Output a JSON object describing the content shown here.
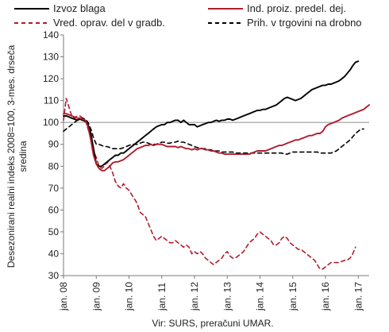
{
  "chart_data": {
    "type": "line",
    "title": "",
    "ylabel": "Desezonirani realni indeks 2008=100, 3-mes. drseča sredina",
    "ylabel_lines": [
      "Desezonirani realni indeks 2008=100, 3-mes. drseča",
      "sredina"
    ],
    "xlabel": "",
    "ylim": [
      30,
      140
    ],
    "yticks": [
      30,
      40,
      50,
      60,
      70,
      80,
      90,
      100,
      110,
      120,
      130,
      140
    ],
    "xlim": [
      "2008-01",
      "2017-03"
    ],
    "xticks": [
      "jan. 08",
      "jan. 09",
      "jan. 10",
      "jan. 11",
      "jan. 12",
      "jan. 13",
      "jan. 14",
      "jan. 15",
      "jan. 16",
      "jan. 17"
    ],
    "reference_line": 100,
    "grid": false,
    "legend": "top",
    "source": "Vir: SURS, preračuni UMAR.",
    "series": [
      {
        "name": "Izvoz blaga",
        "color": "#000000",
        "style": "solid",
        "values": [
          103,
          103,
          102.5,
          102,
          101.5,
          101,
          101.5,
          101,
          100.5,
          99,
          95,
          88,
          81,
          80,
          80,
          81,
          82,
          83,
          84,
          85,
          85,
          86,
          86,
          87,
          88,
          89,
          90,
          91,
          92,
          93,
          94,
          95,
          96,
          97,
          98,
          98.5,
          99,
          99,
          100,
          100,
          100.5,
          101,
          101,
          100,
          101,
          100,
          99,
          99,
          99,
          98,
          98.5,
          99,
          99.5,
          100,
          100,
          100.5,
          101,
          100.5,
          101,
          101,
          101.5,
          101.5,
          101,
          101.5,
          102,
          102.5,
          103,
          103.5,
          104,
          104.5,
          105,
          105.5,
          105.5,
          106,
          106,
          106.5,
          107,
          107.5,
          108,
          109,
          110,
          111,
          111.5,
          111,
          110.5,
          110,
          110.5,
          111,
          112,
          113,
          114,
          115,
          115.5,
          116,
          116.5,
          117,
          117,
          117.5,
          117.5,
          118,
          118.5,
          119,
          120,
          121,
          122.5,
          124,
          126,
          127.5,
          128
        ]
      },
      {
        "name": "Ind. proiz. predel. dej.",
        "color": "#b01c2e",
        "style": "solid",
        "values": [
          104,
          104,
          103.5,
          103,
          102.5,
          102,
          102,
          101.5,
          101,
          98,
          92,
          85,
          81,
          79,
          78,
          78,
          79,
          80,
          81.5,
          82,
          82,
          82.5,
          83,
          84,
          85,
          86,
          87,
          88,
          88.5,
          89,
          89.5,
          89.5,
          90,
          89.5,
          90,
          90,
          90,
          89.5,
          89,
          89,
          89,
          89,
          88.5,
          89,
          88.5,
          88,
          88,
          87.5,
          88,
          87.5,
          88,
          88,
          87.5,
          87.5,
          87,
          87,
          86.5,
          86,
          86,
          85.5,
          85.5,
          85.5,
          85.5,
          85.5,
          85.5,
          85.5,
          85.5,
          85.5,
          85.5,
          86,
          86.5,
          87,
          87,
          87,
          87,
          87.5,
          88,
          88.5,
          89,
          89.5,
          89.5,
          90,
          90.5,
          91,
          91.5,
          92,
          92,
          92.5,
          93,
          93.5,
          94,
          94,
          94.5,
          95,
          95,
          96,
          98,
          99,
          99.5,
          100,
          100.5,
          101,
          102,
          102.5,
          103,
          103.5,
          104,
          104.5,
          105,
          105.5,
          106,
          107,
          108
        ]
      },
      {
        "name": "Vred. oprav. del v gradb.",
        "color": "#b01c2e",
        "style": "dashed",
        "values": [
          101,
          111,
          107,
          103,
          102,
          103,
          103,
          102,
          101,
          97,
          93,
          87,
          84,
          80,
          79,
          80,
          82,
          80,
          77,
          73,
          71,
          70,
          72,
          70,
          69,
          67,
          65,
          63,
          59,
          58,
          57,
          54,
          51,
          48,
          46,
          47,
          48,
          47,
          46,
          45,
          45,
          46,
          45,
          44,
          43,
          44,
          43,
          40,
          41,
          40,
          41,
          40,
          38,
          37,
          36,
          35,
          36,
          37,
          38,
          40,
          41,
          39,
          38,
          38,
          39,
          40,
          41,
          43,
          45,
          46,
          47,
          49,
          50,
          49,
          48,
          47,
          46,
          44,
          44,
          45,
          47,
          48,
          47,
          45,
          44,
          43,
          42,
          42,
          41,
          40,
          39,
          38,
          37,
          35,
          33,
          33,
          34,
          35,
          36,
          36,
          36,
          36,
          36.5,
          37,
          37,
          38,
          40,
          43
        ]
      },
      {
        "name": "Prih. v trgovini na drobno",
        "color": "#000000",
        "style": "dashed",
        "values": [
          96,
          97,
          98,
          99,
          100,
          101,
          101,
          102,
          101.5,
          100,
          97,
          93,
          90,
          90,
          89.5,
          89,
          89,
          88.5,
          88,
          88,
          88,
          88,
          88.5,
          89,
          89.5,
          90,
          90,
          90,
          90.5,
          91,
          91,
          90.5,
          90,
          90,
          90,
          90.5,
          91,
          91,
          90.5,
          90.5,
          91,
          91,
          91.5,
          91,
          91,
          90.5,
          90,
          89.5,
          89,
          88.5,
          88.5,
          88,
          88,
          87.5,
          87.5,
          87,
          87,
          87,
          86.5,
          86.5,
          86.5,
          86.5,
          86.5,
          86,
          86,
          86,
          86,
          86,
          86,
          86,
          86,
          86,
          86,
          86,
          86,
          86,
          86,
          86,
          86,
          86,
          86,
          85.5,
          85.5,
          86,
          86.5,
          86.5,
          86.5,
          86.5,
          86.5,
          86.5,
          86.5,
          86.5,
          86.5,
          86.5,
          86,
          86,
          86,
          86,
          86,
          86.5,
          87,
          88,
          89,
          90,
          91,
          92,
          93.5,
          95,
          96,
          97,
          97
        ]
      }
    ]
  }
}
